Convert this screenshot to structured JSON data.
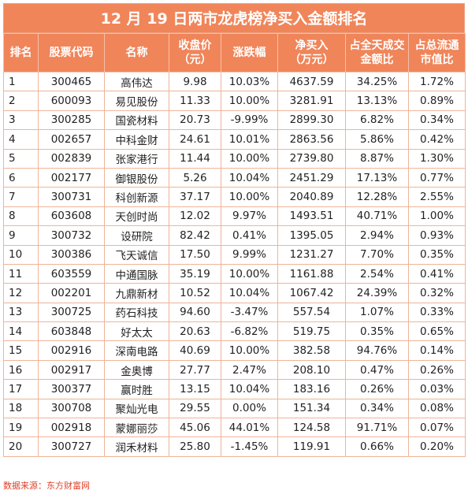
{
  "title": "12 月 19 日两市龙虎榜净买入金额排名",
  "headers": {
    "rank": "排名",
    "code": "股票代码",
    "name": "名称",
    "price": "收盘价\n（元）",
    "change": "涨跌幅",
    "net_buy": "净买入\n（万元）",
    "ratio_turnover": "占全天成交\n金额比",
    "ratio_float": "占总流通\n市值比"
  },
  "source": "数据来源：东方财富网",
  "chart_data": {
    "type": "table",
    "title": "12 月 19 日两市龙虎榜净买入金额排名",
    "columns": [
      "排名",
      "股票代码",
      "名称",
      "收盘价（元）",
      "涨跌幅",
      "净买入（万元）",
      "占全天成交金额比",
      "占总流通市值比"
    ],
    "rows": [
      [
        "1",
        "300465",
        "高伟达",
        "9.98",
        "10.03%",
        "4637.59",
        "34.25%",
        "1.72%"
      ],
      [
        "2",
        "600093",
        "易见股份",
        "11.33",
        "10.00%",
        "3281.91",
        "13.13%",
        "0.89%"
      ],
      [
        "3",
        "300285",
        "国瓷材料",
        "20.73",
        "-9.99%",
        "2899.30",
        "6.82%",
        "0.34%"
      ],
      [
        "4",
        "002657",
        "中科金财",
        "24.61",
        "10.01%",
        "2863.56",
        "5.86%",
        "0.42%"
      ],
      [
        "5",
        "002839",
        "张家港行",
        "11.44",
        "10.00%",
        "2739.80",
        "8.87%",
        "1.30%"
      ],
      [
        "6",
        "002177",
        "御银股份",
        "5.26",
        "10.04%",
        "2451.29",
        "17.13%",
        "0.77%"
      ],
      [
        "7",
        "300731",
        "科创新源",
        "37.17",
        "10.00%",
        "2040.89",
        "12.28%",
        "2.55%"
      ],
      [
        "8",
        "603608",
        "天创时尚",
        "12.02",
        "9.97%",
        "1493.51",
        "40.71%",
        "1.00%"
      ],
      [
        "9",
        "300732",
        "设研院",
        "82.42",
        "0.41%",
        "1395.05",
        "2.94%",
        "0.93%"
      ],
      [
        "10",
        "300386",
        "飞天诚信",
        "17.50",
        "9.99%",
        "1231.27",
        "7.70%",
        "0.35%"
      ],
      [
        "11",
        "603559",
        "中通国脉",
        "35.19",
        "10.00%",
        "1161.88",
        "2.54%",
        "0.41%"
      ],
      [
        "12",
        "002201",
        "九鼎新材",
        "10.52",
        "10.04%",
        "1067.42",
        "24.39%",
        "0.32%"
      ],
      [
        "13",
        "300725",
        "药石科技",
        "94.60",
        "-3.47%",
        "557.54",
        "1.07%",
        "0.33%"
      ],
      [
        "14",
        "603848",
        "好太太",
        "20.63",
        "-6.82%",
        "519.75",
        "0.35%",
        "0.65%"
      ],
      [
        "15",
        "002916",
        "深南电路",
        "40.69",
        "10.00%",
        "382.58",
        "94.76%",
        "0.14%"
      ],
      [
        "16",
        "002917",
        "金奥博",
        "27.77",
        "2.47%",
        "208.10",
        "0.47%",
        "0.26%"
      ],
      [
        "17",
        "300377",
        "赢时胜",
        "13.15",
        "10.04%",
        "183.16",
        "0.26%",
        "0.03%"
      ],
      [
        "18",
        "300708",
        "聚灿光电",
        "29.55",
        "0.00%",
        "151.34",
        "0.34%",
        "0.08%"
      ],
      [
        "19",
        "002918",
        "蒙娜丽莎",
        "45.06",
        "44.01%",
        "124.58",
        "91.71%",
        "0.07%"
      ],
      [
        "20",
        "300727",
        "润禾材料",
        "25.80",
        "-1.45%",
        "119.91",
        "0.66%",
        "0.20%"
      ]
    ]
  },
  "colors": {
    "header_bg": "#f0855a",
    "header_text": "#ffffff",
    "cell_border": "#f0b498",
    "source_text": "#e0402a"
  }
}
